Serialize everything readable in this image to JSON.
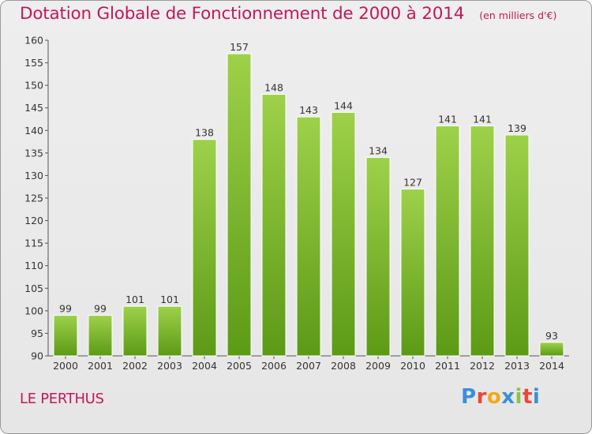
{
  "header": {
    "title": "Dotation Globale de Fonctionnement de 2000 à 2014",
    "subtitle": "(en milliers d'€)"
  },
  "footer": {
    "commune": "LE PERTHUS",
    "logo_text": "Proxiti",
    "logo_colors": [
      "#3b8fd9",
      "#e9473a",
      "#f2a81d",
      "#3b8fd9",
      "#8bc34a",
      "#e9473a",
      "#3b8fd9"
    ]
  },
  "colors": {
    "bar_light": "#9ed14a",
    "bar_dark": "#5c9a16",
    "title": "#c2185b",
    "axis_text": "#333333"
  },
  "chart_data": {
    "type": "bar",
    "title": "Dotation Globale de Fonctionnement de 2000 à 2014",
    "subtitle": "(en milliers d'€)",
    "categories": [
      "2000",
      "2001",
      "2002",
      "2003",
      "2004",
      "2005",
      "2006",
      "2007",
      "2008",
      "2009",
      "2010",
      "2011",
      "2012",
      "2013",
      "2014"
    ],
    "values": [
      99,
      99,
      101,
      101,
      138,
      157,
      148,
      143,
      144,
      134,
      127,
      141,
      141,
      139,
      93
    ],
    "ylim": [
      90,
      160
    ],
    "yticks": [
      90,
      95,
      100,
      105,
      110,
      115,
      120,
      125,
      130,
      135,
      140,
      145,
      150,
      155,
      160
    ],
    "grid": false,
    "xlabel": "",
    "ylabel": ""
  }
}
